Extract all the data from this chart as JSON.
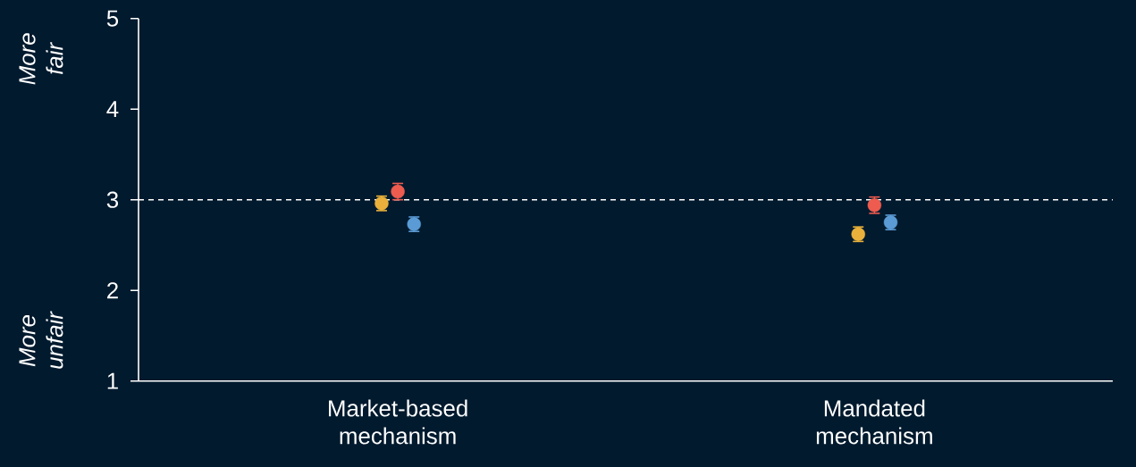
{
  "chart_data": {
    "type": "scatter",
    "categories": [
      "Market-based mechanism",
      "Mandated mechanism"
    ],
    "series": [
      {
        "color": "#e9b13b",
        "values": [
          2.96,
          2.62
        ],
        "errors": [
          0.08,
          0.08
        ]
      },
      {
        "color": "#ee5b4f",
        "values": [
          3.09,
          2.94
        ],
        "errors": [
          0.09,
          0.09
        ]
      },
      {
        "color": "#5b9bd5",
        "values": [
          2.73,
          2.75
        ],
        "errors": [
          0.08,
          0.08
        ]
      }
    ],
    "ylim": [
      1,
      5
    ],
    "yticks": [
      1,
      2,
      3,
      4,
      5
    ],
    "ref_lines": [
      {
        "axis": "y",
        "value": 3,
        "color": "#ffffff",
        "line_style": "dashed"
      }
    ],
    "annotations": [
      "More fair",
      "More unfair"
    ],
    "marker": "circle"
  }
}
